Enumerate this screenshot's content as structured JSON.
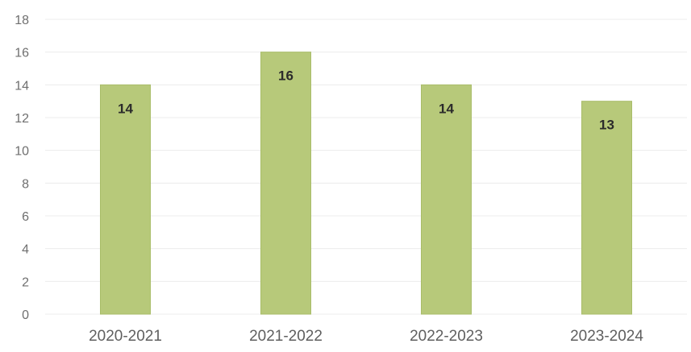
{
  "chart_data": {
    "type": "bar",
    "categories": [
      "2020-2021",
      "2021-2022",
      "2022-2023",
      "2023-2024"
    ],
    "values": [
      14,
      16,
      14,
      13
    ],
    "title": "",
    "xlabel": "",
    "ylabel": "",
    "ylim": [
      0,
      18
    ],
    "yticks": [
      0,
      2,
      4,
      6,
      8,
      10,
      12,
      14,
      16,
      18
    ],
    "ytick_labels": [
      "0",
      "2",
      "4",
      "6",
      "8",
      "10",
      "12",
      "14",
      "16",
      "18"
    ],
    "data_labels": [
      "14",
      "16",
      "14",
      "13"
    ],
    "grid": true,
    "legend": "none",
    "colors": {
      "bar": "#b7c97a",
      "bar_edge": "#a9bd69",
      "grid": "#ececec"
    }
  }
}
